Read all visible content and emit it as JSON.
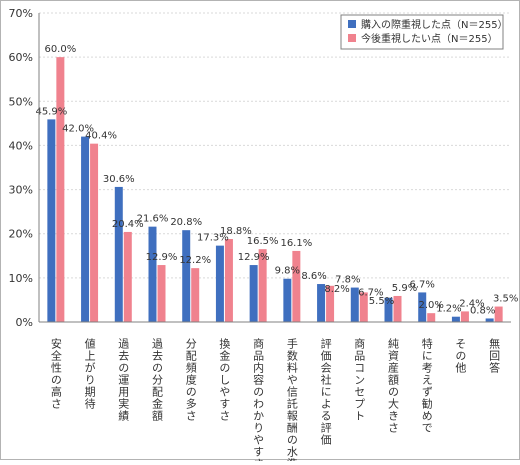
{
  "chart_data": {
    "type": "bar",
    "title": "",
    "xlabel": "",
    "ylabel": "",
    "ylim": [
      0,
      70
    ],
    "yticks": [
      "0%",
      "10%",
      "20%",
      "30%",
      "40%",
      "50%",
      "60%",
      "70%"
    ],
    "grid": true,
    "legend_position": "top-right",
    "categories": [
      "安全性の高さ",
      "値上がり期待",
      "過去の運用実績",
      "過去の分配金額",
      "分配頻度の多さ",
      "換金のしやすさ",
      "商品内容のわかりやすさ",
      "手数料や信託報酬の水準",
      "評価会社による評価",
      "商品コンセプト",
      "純資産額の大きさ",
      "特に考えず勧めで",
      "その他",
      "無回答"
    ],
    "series": [
      {
        "name": "購入の際重視した点（N＝255）",
        "color": "#3f6fbf",
        "values": [
          45.9,
          42.0,
          30.6,
          21.6,
          20.8,
          17.3,
          12.9,
          9.8,
          8.6,
          7.8,
          5.5,
          6.7,
          1.2,
          0.8
        ],
        "labels": [
          "45.9%",
          "42.0%",
          "30.6%",
          "21.6%",
          "20.8%",
          "17.3%",
          "12.9%",
          "9.8%",
          "8.6%",
          "7.8%",
          "5.5%",
          "6.7%",
          "1.2%",
          "0.8%"
        ]
      },
      {
        "name": "今後重視したい点（N＝255）",
        "color": "#f0828e",
        "values": [
          60.0,
          40.4,
          20.4,
          12.9,
          12.2,
          18.8,
          16.5,
          16.1,
          8.2,
          6.7,
          5.9,
          2.0,
          2.4,
          3.5
        ],
        "labels": [
          "60.0%",
          "40.4%",
          "20.4%",
          "12.9%",
          "12.2%",
          "18.8%",
          "16.5%",
          "16.1%",
          "8.2%",
          "6.7%",
          "5.9%",
          "2.0%",
          "2.4%",
          "3.5%"
        ]
      }
    ]
  }
}
